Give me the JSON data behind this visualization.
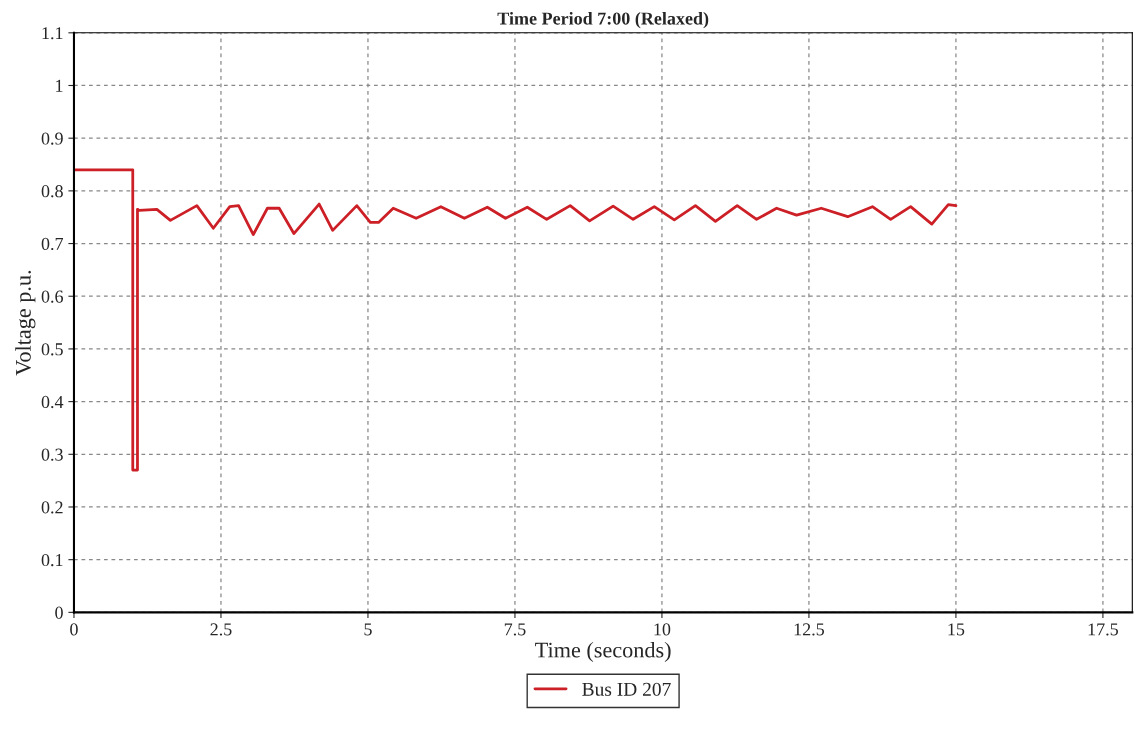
{
  "chart_data": {
    "type": "line",
    "title": "Time Period 7:00 (Relaxed)",
    "xlabel": "Time (seconds)",
    "ylabel": "Voltage p.u.",
    "series": [
      {
        "name": "Bus ID 207",
        "color": "#cc1f26",
        "x": [
          0,
          1.0,
          1.0,
          1.08,
          1.08,
          1.11,
          1.41,
          1.64,
          2.09,
          2.37,
          2.65,
          2.8,
          3.05,
          3.29,
          3.49,
          3.74,
          4.17,
          4.4,
          4.81,
          5.04,
          5.18,
          5.43,
          5.82,
          6.24,
          6.64,
          7.03,
          7.34,
          7.71,
          8.04,
          8.44,
          8.77,
          9.17,
          9.51,
          9.87,
          10.21,
          10.57,
          10.91,
          11.28,
          11.61,
          11.95,
          12.29,
          12.71,
          13.16,
          13.58,
          13.89,
          14.23,
          14.59,
          14.87,
          15.0
        ],
        "values": [
          0.84,
          0.84,
          0.27,
          0.27,
          0.765,
          0.763,
          0.765,
          0.744,
          0.772,
          0.729,
          0.77,
          0.772,
          0.717,
          0.767,
          0.767,
          0.719,
          0.775,
          0.725,
          0.772,
          0.74,
          0.74,
          0.767,
          0.748,
          0.77,
          0.748,
          0.769,
          0.748,
          0.769,
          0.746,
          0.772,
          0.743,
          0.771,
          0.746,
          0.77,
          0.745,
          0.772,
          0.742,
          0.772,
          0.746,
          0.767,
          0.754,
          0.767,
          0.751,
          0.77,
          0.746,
          0.77,
          0.737,
          0.774,
          0.772
        ]
      }
    ],
    "xlim": [
      0,
      18
    ],
    "xticks": [
      0,
      2.5,
      5,
      7.5,
      10,
      12.5,
      15,
      17.5
    ],
    "ylim": [
      0,
      1.1
    ],
    "yticks": [
      0,
      0.1,
      0.2,
      0.3,
      0.4,
      0.5,
      0.6,
      0.7,
      0.8,
      0.9,
      1,
      1.1
    ],
    "grid": true,
    "legend": "bottom",
    "marker": "none",
    "line_style": "solid"
  }
}
